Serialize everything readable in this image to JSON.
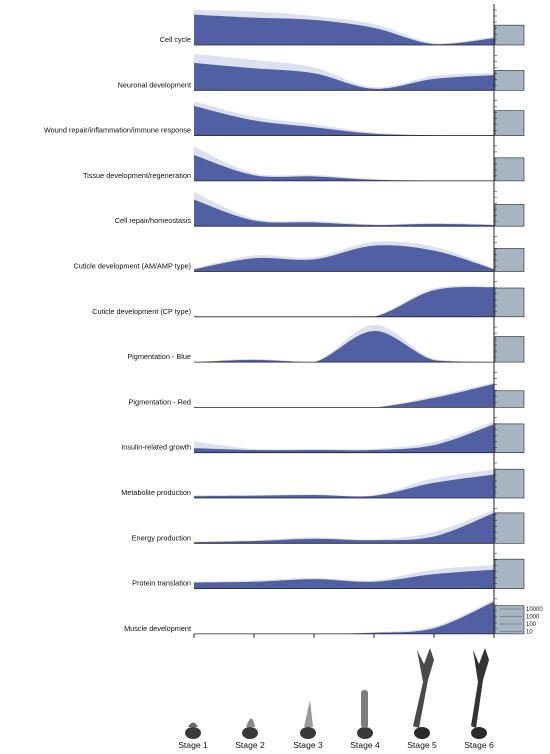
{
  "chart_data": {
    "type": "area",
    "title": "",
    "xlabel": "",
    "ylabel": "",
    "x": [
      "Stage 1",
      "Stage 2",
      "Stage 3",
      "Stage 4",
      "Stage 5",
      "Stage 6"
    ],
    "fill_colors": {
      "mean": "#5160a3",
      "upper": "#dde1ef",
      "bar": "#a7b4c2",
      "axis": "#222222"
    },
    "rows": [
      {
        "label": "Cell cycle",
        "mean": [
          0.8,
          0.72,
          0.66,
          0.45,
          0.02,
          0.18
        ],
        "upper": [
          0.92,
          0.88,
          0.76,
          0.55,
          0.06,
          0.22
        ],
        "bar": 0.62
      },
      {
        "label": "Neuronal development",
        "mean": [
          0.72,
          0.58,
          0.45,
          0.04,
          0.3,
          0.4
        ],
        "upper": [
          0.96,
          0.8,
          0.6,
          0.08,
          0.38,
          0.46
        ],
        "bar": 0.62
      },
      {
        "label": "Wound repair/inflammation/immune response",
        "mean": [
          0.78,
          0.4,
          0.22,
          0.05,
          0.01,
          0.01
        ],
        "upper": [
          0.9,
          0.5,
          0.3,
          0.08,
          0.02,
          0.02
        ],
        "bar": 0.78
      },
      {
        "label": "Tissue development/regeneration",
        "mean": [
          0.68,
          0.15,
          0.12,
          0.03,
          0.01,
          0.01
        ],
        "upper": [
          0.9,
          0.2,
          0.16,
          0.05,
          0.02,
          0.02
        ],
        "bar": 0.72
      },
      {
        "label": "Cell repair/homeostasis",
        "mean": [
          0.7,
          0.15,
          0.1,
          0.03,
          0.06,
          0.03
        ],
        "upper": [
          0.9,
          0.2,
          0.14,
          0.05,
          0.08,
          0.05
        ],
        "bar": 0.68
      },
      {
        "label": "Cuticle development (AM/AMP type)",
        "mean": [
          0.06,
          0.35,
          0.32,
          0.68,
          0.55,
          0.06
        ],
        "upper": [
          0.08,
          0.42,
          0.38,
          0.78,
          0.65,
          0.08
        ],
        "bar": 0.72
      },
      {
        "label": "Cuticle development (CP type)",
        "mean": [
          0.0,
          0.0,
          0.0,
          0.0,
          0.7,
          0.78
        ],
        "upper": [
          0.0,
          0.0,
          0.0,
          0.02,
          0.75,
          0.8
        ],
        "bar": 0.9
      },
      {
        "label": "Pigmentation - Blue",
        "mean": [
          0.0,
          0.06,
          0.0,
          0.82,
          0.05,
          0.0
        ],
        "upper": [
          0.0,
          0.08,
          0.0,
          0.98,
          0.08,
          0.0
        ],
        "bar": 0.8
      },
      {
        "label": "Pigmentation - Red",
        "mean": [
          0.0,
          0.0,
          0.0,
          0.0,
          0.25,
          0.62
        ],
        "upper": [
          0.0,
          0.0,
          0.0,
          0.0,
          0.3,
          0.66
        ],
        "bar": 0.52
      },
      {
        "label": "Insulin-related growth",
        "mean": [
          0.12,
          0.07,
          0.07,
          0.07,
          0.2,
          0.75
        ],
        "upper": [
          0.3,
          0.1,
          0.1,
          0.1,
          0.28,
          0.82
        ],
        "bar": 0.9
      },
      {
        "label": "Metabolite production",
        "mean": [
          0.05,
          0.06,
          0.08,
          0.06,
          0.4,
          0.62
        ],
        "upper": [
          0.08,
          0.08,
          0.1,
          0.08,
          0.52,
          0.75
        ],
        "bar": 0.9
      },
      {
        "label": "Energy production",
        "mean": [
          0.03,
          0.06,
          0.12,
          0.08,
          0.18,
          0.8
        ],
        "upper": [
          0.04,
          0.08,
          0.16,
          0.1,
          0.3,
          0.88
        ],
        "bar": 0.95
      },
      {
        "label": "Protein translation",
        "mean": [
          0.16,
          0.18,
          0.25,
          0.18,
          0.38,
          0.5
        ],
        "upper": [
          0.18,
          0.22,
          0.28,
          0.22,
          0.5,
          0.62
        ],
        "bar": 0.92
      },
      {
        "label": "Muscle development",
        "mean": [
          0.0,
          0.0,
          0.0,
          0.03,
          0.15,
          0.85
        ],
        "upper": [
          0.0,
          0.0,
          0.0,
          0.04,
          0.2,
          0.9
        ],
        "bar": 0.88
      }
    ],
    "legend": {
      "placement": "bottom-right",
      "entries": [
        "10000",
        "1000",
        "100",
        "10"
      ]
    },
    "stage_images": [
      {
        "stage": "Stage 1",
        "icon": "limb-bud-stage-1-icon"
      },
      {
        "stage": "Stage 2",
        "icon": "limb-bud-stage-2-icon"
      },
      {
        "stage": "Stage 3",
        "icon": "limb-bud-stage-3-icon"
      },
      {
        "stage": "Stage 4",
        "icon": "limb-stage-4-icon"
      },
      {
        "stage": "Stage 5",
        "icon": "limb-stage-5-icon"
      },
      {
        "stage": "Stage 6",
        "icon": "limb-stage-6-icon"
      }
    ]
  }
}
